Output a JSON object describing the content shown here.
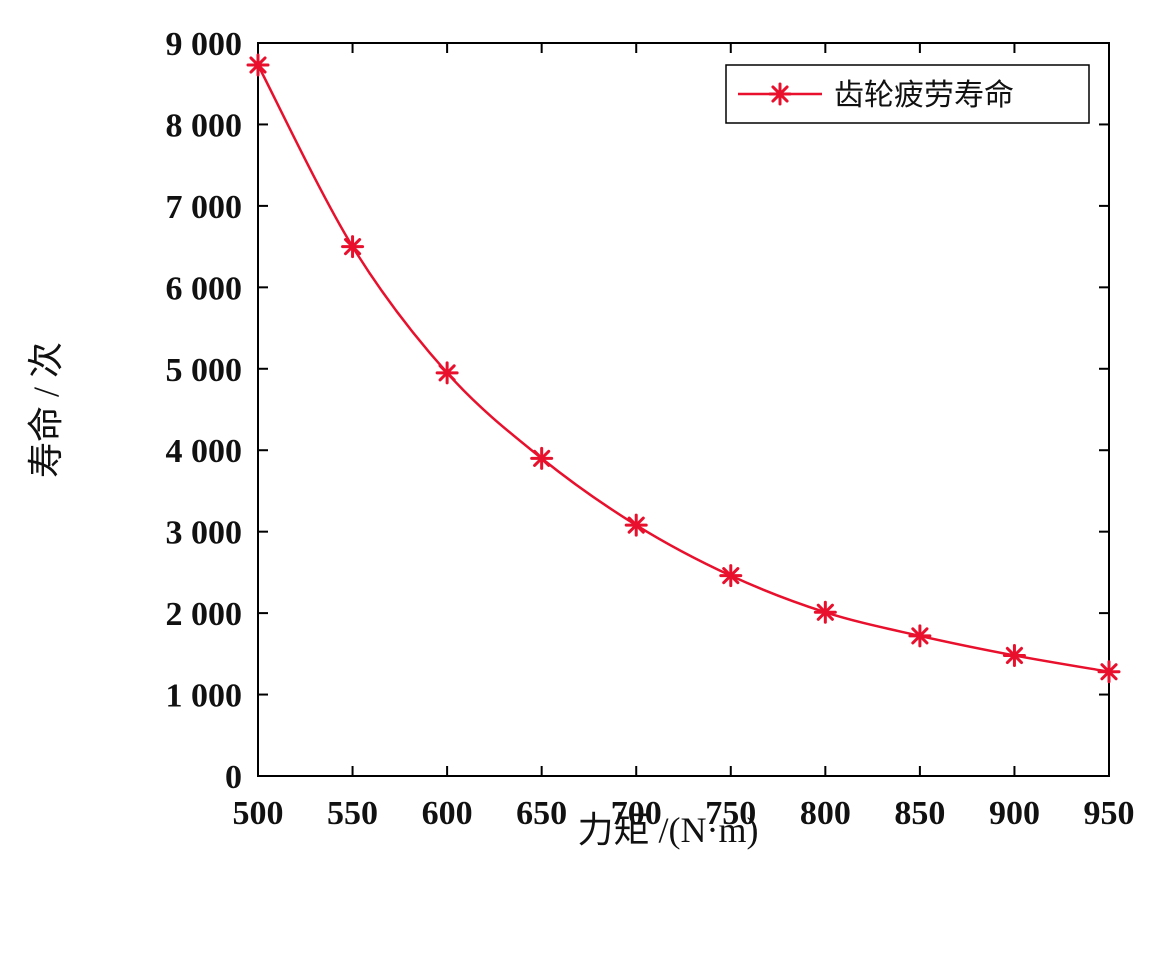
{
  "chart_data": {
    "type": "line",
    "x": [
      500,
      550,
      600,
      650,
      700,
      750,
      800,
      850,
      900,
      950
    ],
    "series": [
      {
        "name": "齿轮疲劳寿命",
        "color": "#e8102c",
        "marker": "asterisk",
        "values": [
          8730,
          6500,
          4950,
          3900,
          3080,
          2460,
          2010,
          1720,
          1480,
          1280
        ]
      }
    ],
    "xlabel": "力矩 /(N·m)",
    "ylabel": "寿命 / 次",
    "xlim": [
      500,
      950
    ],
    "ylim": [
      0,
      9000
    ],
    "xticks": [
      "500",
      "550",
      "600",
      "650",
      "700",
      "750",
      "800",
      "850",
      "900",
      "950"
    ],
    "yticks": [
      "0",
      "1 000",
      "2 000",
      "3 000",
      "4 000",
      "5 000",
      "6 000",
      "7 000",
      "8 000",
      "9 000"
    ],
    "legend_position": "top-right",
    "grid": false
  }
}
